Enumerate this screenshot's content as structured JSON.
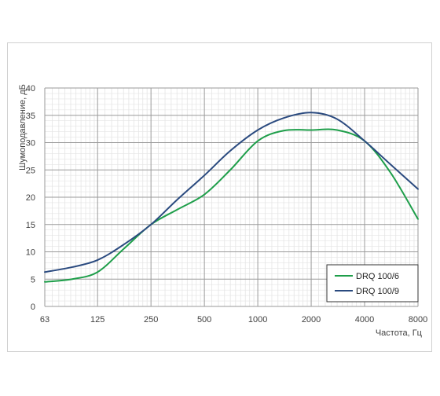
{
  "chart_data": {
    "type": "line",
    "xlabel": "Частота, Гц",
    "ylabel": "Шумоподавление, дБ",
    "x_scale": "log2",
    "x": [
      63,
      125,
      250,
      500,
      1000,
      2000,
      4000,
      8000
    ],
    "xticks": [
      "63",
      "125",
      "250",
      "500",
      "1000",
      "2000",
      "4000",
      "8000"
    ],
    "ylim": [
      0,
      40
    ],
    "yticks": [
      0,
      5,
      10,
      15,
      20,
      25,
      30,
      35,
      40
    ],
    "grid": true,
    "minor_grid": true,
    "legend_position": "bottom-right",
    "series": [
      {
        "name": "DRQ 100/6",
        "color": "#1e9e4a",
        "x": [
          63,
          90,
          125,
          175,
          250,
          350,
          500,
          700,
          1000,
          1400,
          2000,
          2800,
          4000,
          5600,
          8000
        ],
        "values": [
          4.5,
          5.0,
          6.3,
          10.5,
          15.0,
          17.7,
          20.5,
          25.0,
          30.3,
          32.2,
          32.3,
          32.3,
          30.3,
          24.5,
          16.0
        ]
      },
      {
        "name": "DRQ 100/9",
        "color": "#2a4a7f",
        "x": [
          63,
          90,
          125,
          175,
          250,
          350,
          500,
          700,
          1000,
          1400,
          2000,
          2800,
          4000,
          5600,
          8000
        ],
        "values": [
          6.3,
          7.2,
          8.5,
          11.3,
          15.0,
          19.5,
          24.0,
          28.5,
          32.3,
          34.5,
          35.5,
          34.3,
          30.3,
          26.0,
          21.5
        ]
      }
    ]
  }
}
